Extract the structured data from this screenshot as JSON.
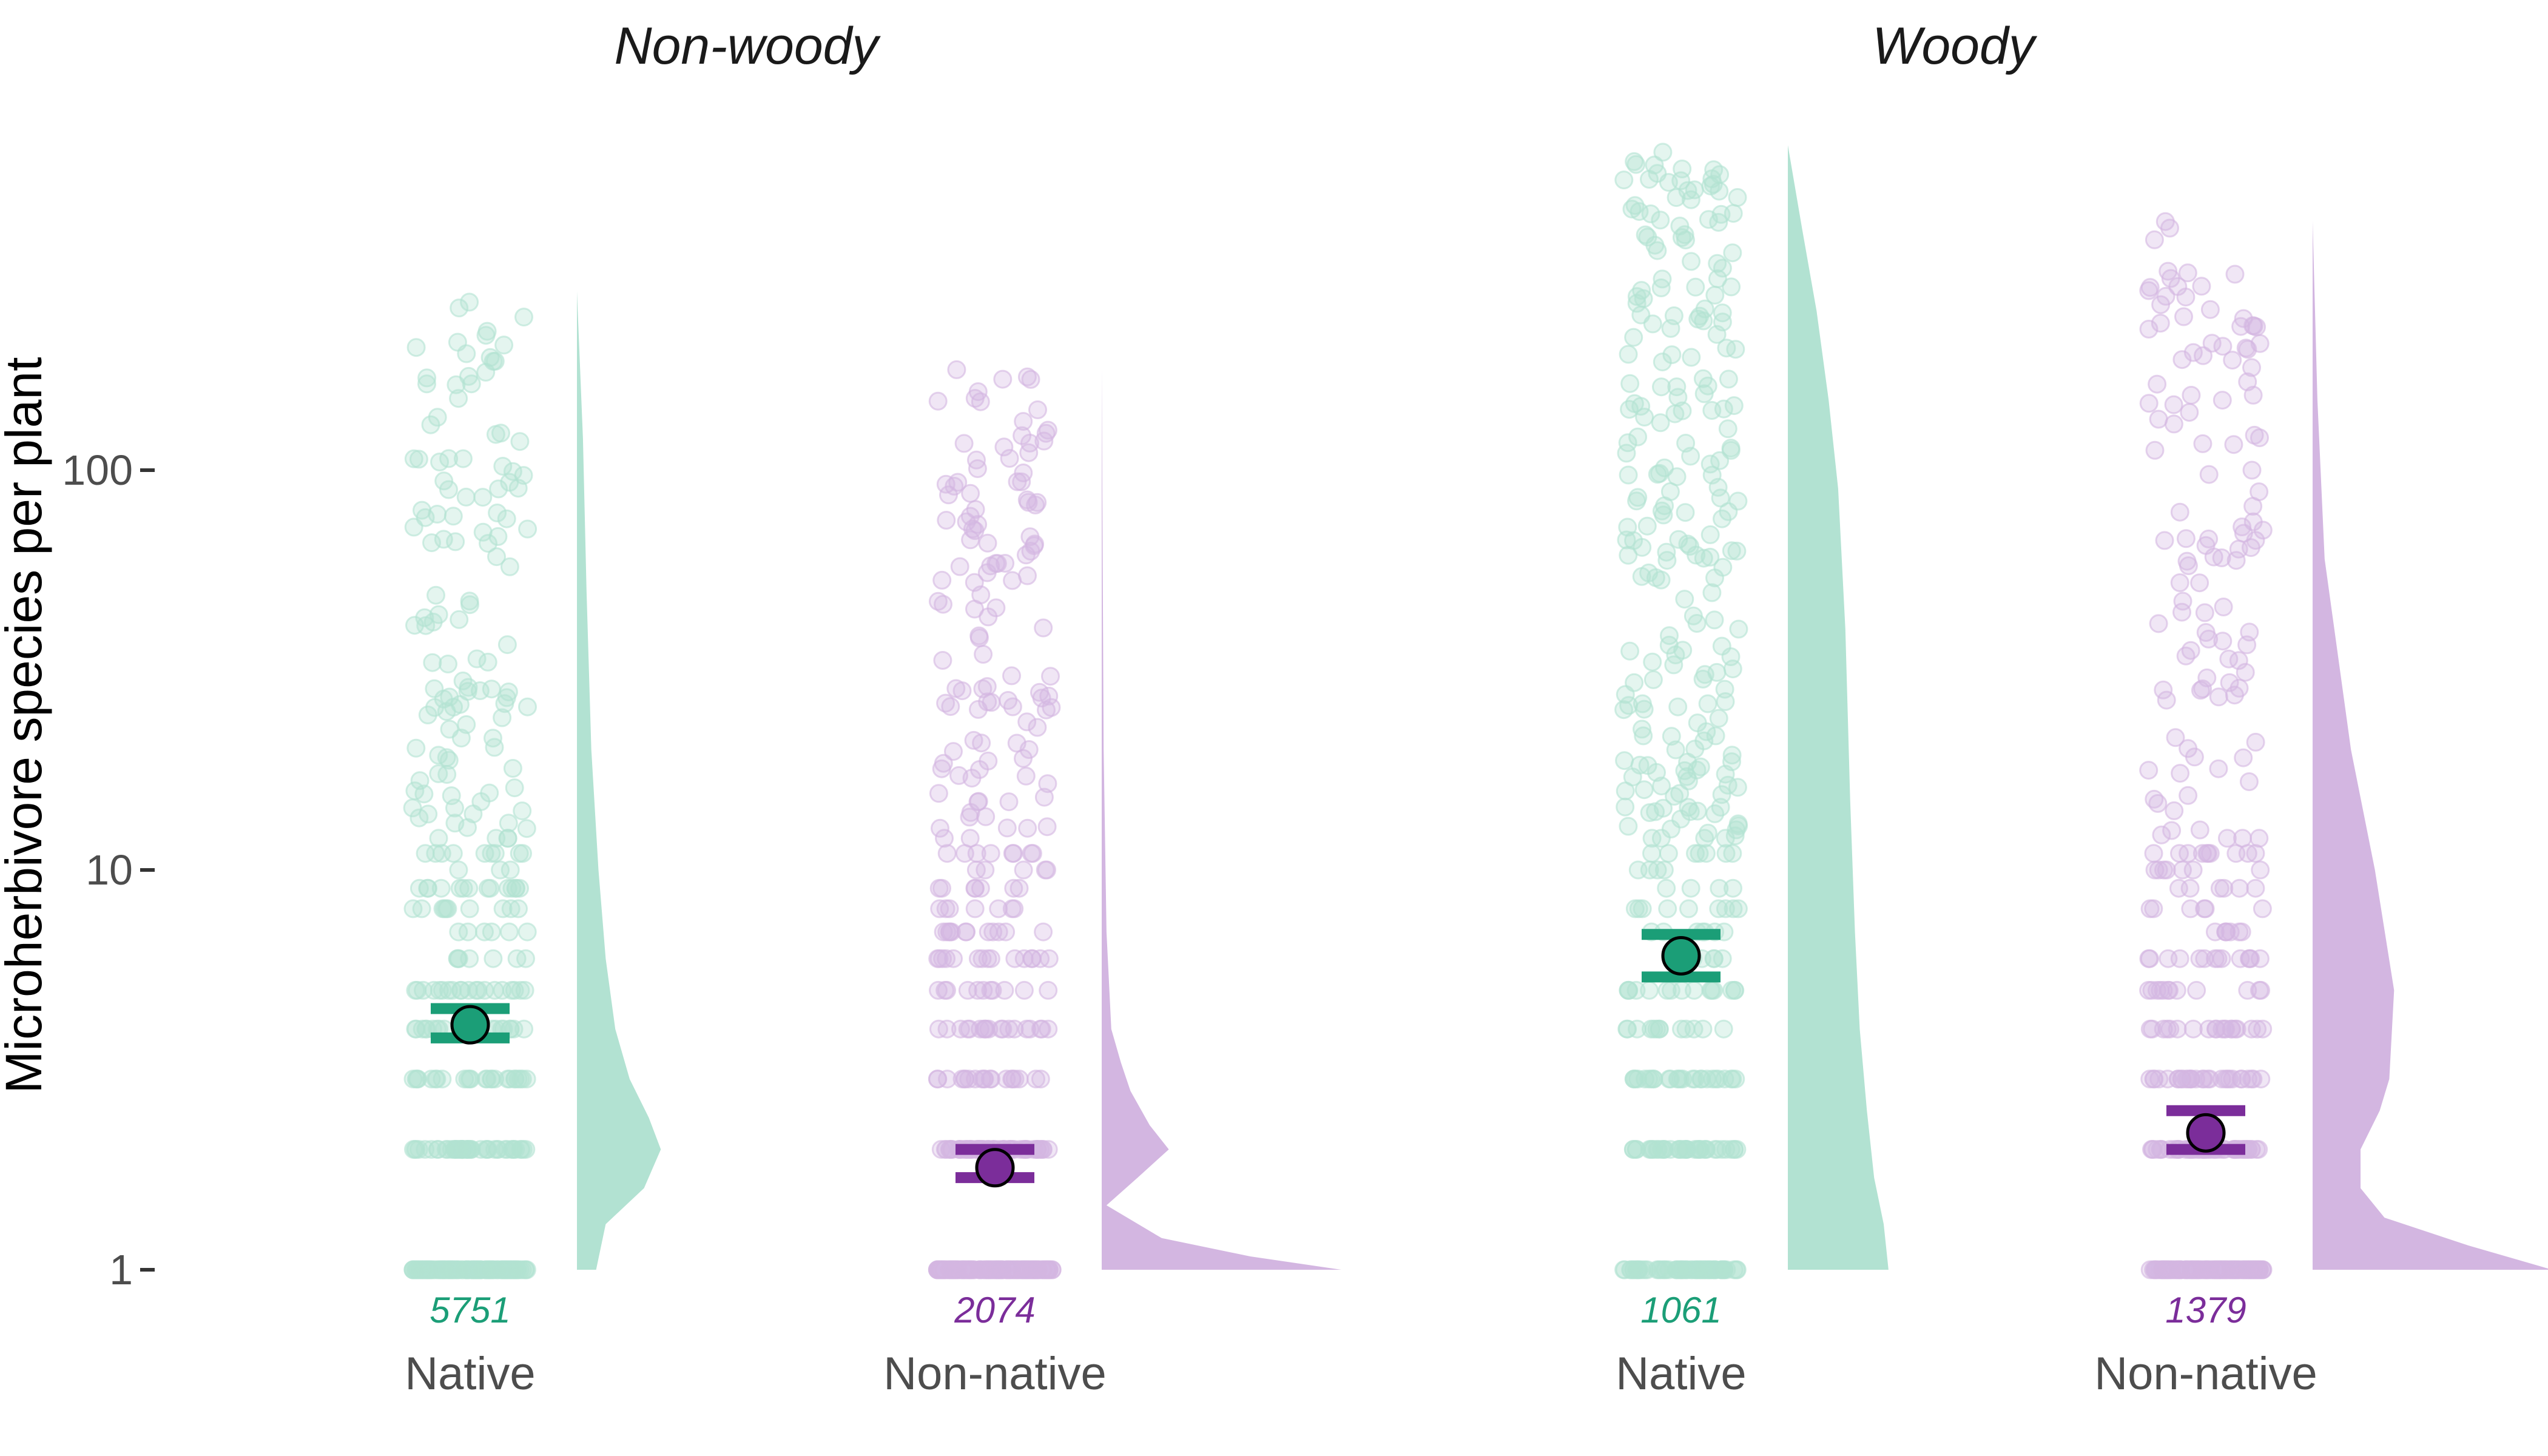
{
  "chart_data": {
    "type": "raincloud",
    "y_scale": "log10",
    "ylim": [
      1,
      700
    ],
    "ylabel": "Microherbivore species per plant",
    "yticks": [
      {
        "value": 1,
        "label": "1"
      },
      {
        "value": 10,
        "label": "10"
      },
      {
        "value": 100,
        "label": "100"
      }
    ],
    "grid": false,
    "colors": {
      "Native": "#1b9e77",
      "Native_light": "#b2e2d2",
      "Non-native": "#7b2d9a",
      "Non-native_light": "#d3b6e1"
    },
    "facets": [
      {
        "title": "Non-woody",
        "groups": [
          {
            "label": "Native",
            "n": "5751",
            "mean": 4.1,
            "ci": [
              3.8,
              4.5
            ],
            "max": 280,
            "color": "Native",
            "density": [
              [
                1,
                0.08
              ],
              [
                1.3,
                0.12
              ],
              [
                1.6,
                0.28
              ],
              [
                2,
                0.35
              ],
              [
                2.4,
                0.3
              ],
              [
                3,
                0.22
              ],
              [
                4,
                0.16
              ],
              [
                6,
                0.12
              ],
              [
                10,
                0.09
              ],
              [
                20,
                0.06
              ],
              [
                50,
                0.04
              ],
              [
                120,
                0.025
              ],
              [
                280,
                0
              ]
            ]
          },
          {
            "label": "Non-native",
            "n": "2074",
            "mean": 1.8,
            "ci": [
              1.7,
              2.0
            ],
            "max": 180,
            "color": "Non-native",
            "density": [
              [
                1,
                1.0
              ],
              [
                1.08,
                0.62
              ],
              [
                1.2,
                0.25
              ],
              [
                1.45,
                0.02
              ],
              [
                1.7,
                0.15
              ],
              [
                2,
                0.28
              ],
              [
                2.3,
                0.2
              ],
              [
                2.8,
                0.12
              ],
              [
                3.3,
                0.08
              ],
              [
                4,
                0.04
              ],
              [
                7,
                0.02
              ],
              [
                20,
                0.008
              ],
              [
                180,
                0
              ]
            ]
          }
        ]
      },
      {
        "title": "Woody",
        "groups": [
          {
            "label": "Native",
            "n": "1061",
            "mean": 6.1,
            "ci": [
              5.4,
              6.9
            ],
            "max": 650,
            "color": "Native",
            "density": [
              [
                1,
                0.42
              ],
              [
                1.3,
                0.4
              ],
              [
                1.7,
                0.36
              ],
              [
                2.5,
                0.33
              ],
              [
                4,
                0.3
              ],
              [
                7,
                0.28
              ],
              [
                15,
                0.26
              ],
              [
                40,
                0.24
              ],
              [
                90,
                0.21
              ],
              [
                150,
                0.17
              ],
              [
                250,
                0.12
              ],
              [
                400,
                0.06
              ],
              [
                650,
                0
              ]
            ]
          },
          {
            "label": "Non-native",
            "n": "1379",
            "mean": 2.2,
            "ci": [
              2.0,
              2.5
            ],
            "max": 420,
            "color": "Non-native",
            "density": [
              [
                1,
                1.0
              ],
              [
                1.15,
                0.65
              ],
              [
                1.35,
                0.3
              ],
              [
                1.6,
                0.2
              ],
              [
                2,
                0.2
              ],
              [
                2.5,
                0.28
              ],
              [
                3,
                0.32
              ],
              [
                5,
                0.34
              ],
              [
                10,
                0.26
              ],
              [
                20,
                0.16
              ],
              [
                60,
                0.05
              ],
              [
                150,
                0.02
              ],
              [
                420,
                0
              ]
            ]
          }
        ]
      }
    ]
  }
}
